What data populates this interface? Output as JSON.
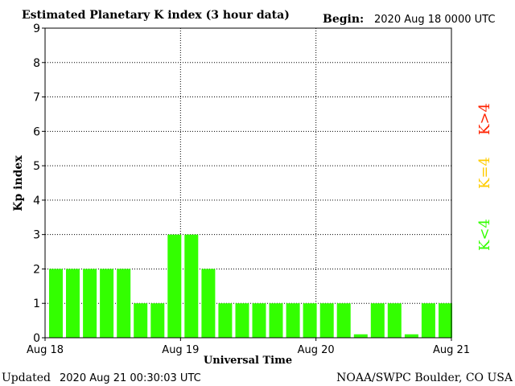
{
  "header": {
    "title": "Estimated Planetary K index (3 hour data)",
    "begin_label": "Begin:",
    "begin_value": "2020 Aug 18 0000 UTC"
  },
  "footer": {
    "updated_label": "Updated",
    "updated_value": "2020 Aug 21 00:30:03 UTC",
    "credit": "NOAA/SWPC Boulder, CO USA"
  },
  "legend": {
    "low": "K<4",
    "mid": "K=4",
    "high": "K>4"
  },
  "colors": {
    "low": "#33ff00",
    "mid": "#ffcc00",
    "high": "#ff2200",
    "grid": "#000000"
  },
  "chart_data": {
    "type": "bar",
    "title": "Estimated Planetary K index (3 hour data)",
    "xlabel": "Universal Time",
    "ylabel": "Kp index",
    "ylim": [
      0,
      9
    ],
    "yticks": [
      "0",
      "1",
      "2",
      "3",
      "4",
      "5",
      "6",
      "7",
      "8",
      "9"
    ],
    "xticks": [
      "Aug 18",
      "Aug 19",
      "Aug 20",
      "Aug 21"
    ],
    "grid": "dotted",
    "series": [
      {
        "values": [
          2,
          2,
          2,
          2,
          2,
          1,
          1,
          3,
          3,
          2,
          1,
          1,
          1,
          1,
          1,
          1,
          1,
          1,
          0.1,
          1,
          1,
          0.1,
          1,
          1
        ]
      }
    ]
  }
}
